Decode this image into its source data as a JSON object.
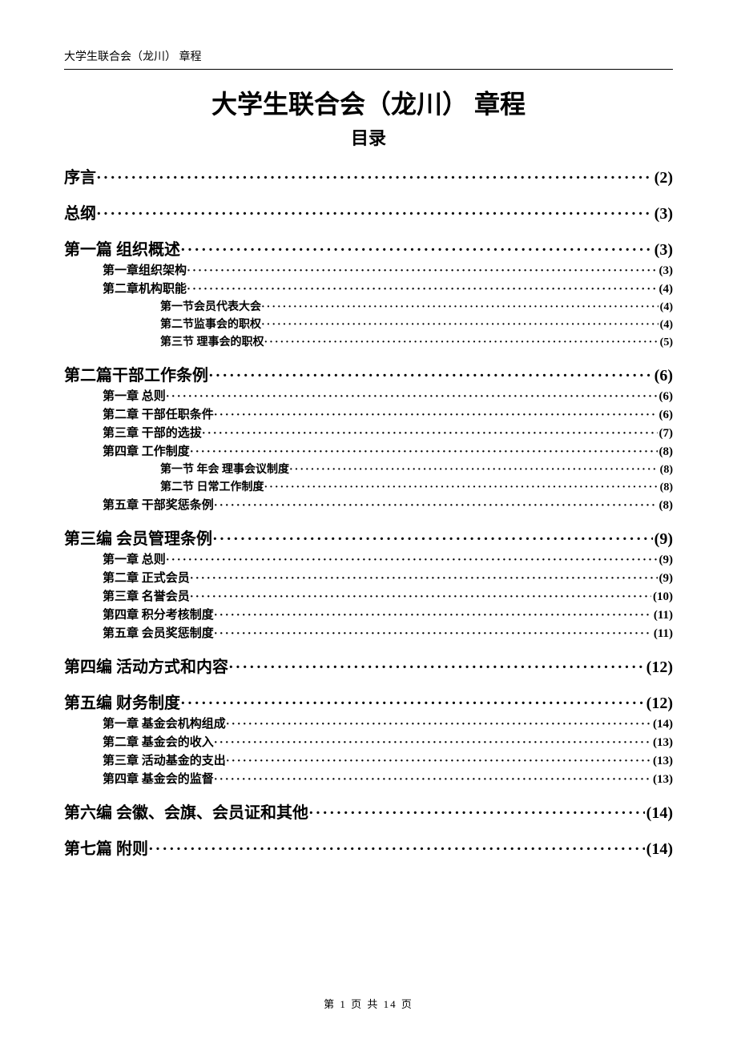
{
  "running_head": "大学生联合会（龙川） 章程",
  "title": "大学生联合会（龙川） 章程",
  "subtitle": "目录",
  "footer": "第 1 页 共 14 页",
  "dots_fill": "·····························································································································································································",
  "toc": [
    {
      "lvl": 1,
      "label": "序言",
      "page": "(2)"
    },
    {
      "lvl": 1,
      "label": "总纲",
      "page": "(3)"
    },
    {
      "lvl": 1,
      "label": "第一篇  组织概述",
      "page": "(3)"
    },
    {
      "lvl": 2,
      "label": "第一章组织架构",
      "page": "  (3)"
    },
    {
      "lvl": 2,
      "label": "第二章机构职能",
      "page": "(4)"
    },
    {
      "lvl": 3,
      "label": "第一节会员代表大会",
      "page": "(4)"
    },
    {
      "lvl": 3,
      "label": "第二节监事会的职权",
      "page": "(4)"
    },
    {
      "lvl": 3,
      "label": "第三节  理事会的职权",
      "page": "  (5)"
    },
    {
      "lvl": 1,
      "label": "第二篇干部工作条例",
      "page": "  (6)"
    },
    {
      "lvl": 2,
      "label": "第一章  总则",
      "page": "(6)"
    },
    {
      "lvl": 2,
      "label": "第二章  干部任职条件",
      "page": "(6)"
    },
    {
      "lvl": 2,
      "label": "第三章  干部的选拔",
      "page": "(7)"
    },
    {
      "lvl": 2,
      "label": "第四章  工作制度",
      "page": "(8)"
    },
    {
      "lvl": 3,
      "label": "第一节  年会  理事会议制度",
      "page": "(8)"
    },
    {
      "lvl": 3,
      "label": "第二节  日常工作制度",
      "page": "(8)"
    },
    {
      "lvl": 2,
      "label": "第五章  干部奖惩条例",
      "page": "(8)"
    },
    {
      "lvl": 1,
      "label": "第三编  会员管理条例",
      "page": "(9)"
    },
    {
      "lvl": 2,
      "label": "第一章  总则",
      "page": "(9)"
    },
    {
      "lvl": 2,
      "label": "第二章  正式会员",
      "page": "(9)"
    },
    {
      "lvl": 2,
      "label": "第三章  名誉会员",
      "page": "(10)"
    },
    {
      "lvl": 2,
      "label": "第四章  积分考核制度",
      "page": "(11)"
    },
    {
      "lvl": 2,
      "label": "第五章  会员奖惩制度",
      "page": "(11)"
    },
    {
      "lvl": 1,
      "label": "第四编  活动方式和内容",
      "page": "(12)"
    },
    {
      "lvl": 1,
      "label": "第五编  财务制度",
      "page": "(12)"
    },
    {
      "lvl": 2,
      "label": "第一章  基金会机构组成",
      "page": "(14)"
    },
    {
      "lvl": 2,
      "label": "第二章  基金会的收入",
      "page": "(13)"
    },
    {
      "lvl": 2,
      "label": "第三章  活动基金的支出",
      "page": "(13)"
    },
    {
      "lvl": 2,
      "label": "第四章  基金会的监督",
      "page": "(13)"
    },
    {
      "lvl": 1,
      "label": "第六编  会徽、会旗、会员证和其他",
      "page": "(14)"
    },
    {
      "lvl": 1,
      "label": "第七篇  附则",
      "page": "(14)"
    }
  ]
}
